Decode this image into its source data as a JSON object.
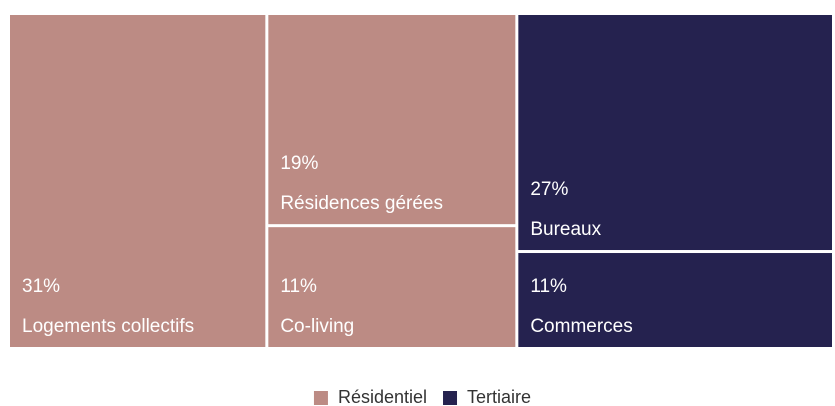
{
  "chart_data": {
    "type": "treemap",
    "series": [
      {
        "name": "Résidentiel",
        "color": "#bc8b84",
        "categories": [
          "Logements collectifs",
          "Résidences gérées",
          "Co-living"
        ],
        "values": [
          31,
          19,
          11
        ],
        "value_labels": [
          "31%",
          "19%",
          "11%"
        ]
      },
      {
        "name": "Tertiaire",
        "color": "#25224f",
        "categories": [
          "Bureaux",
          "Commerces"
        ],
        "values": [
          27,
          11
        ],
        "value_labels": [
          "27%",
          "11%"
        ]
      }
    ],
    "legend": "bottom"
  }
}
